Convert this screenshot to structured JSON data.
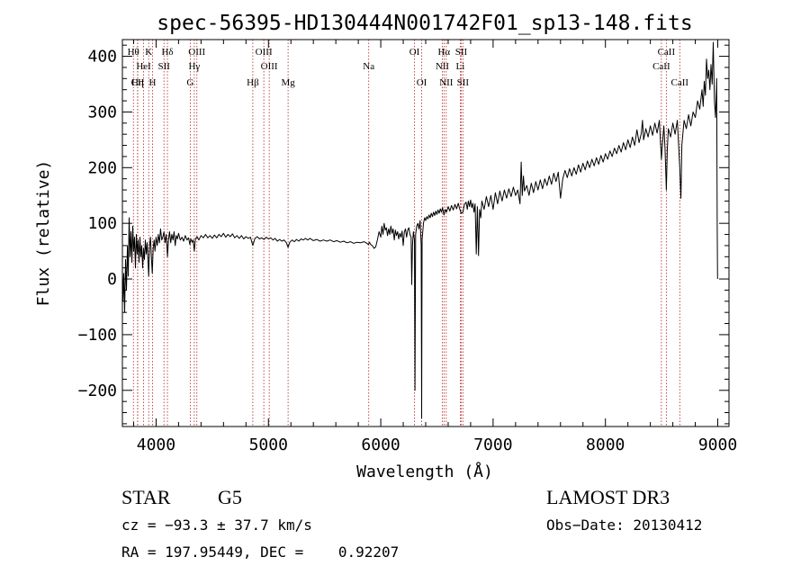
{
  "chart_data": {
    "type": "line",
    "title": "spec-56395-HD130444N001742F01_sp13-148.fits",
    "xlabel": "Wavelength (Å)",
    "ylabel": "Flux (relative)",
    "xlim": [
      3700,
      9100
    ],
    "ylim": [
      -265,
      430
    ],
    "x_ticks": [
      "4000",
      "5000",
      "6000",
      "7000",
      "8000",
      "9000"
    ],
    "x_tick_values": [
      4000,
      5000,
      6000,
      7000,
      8000,
      9000
    ],
    "y_ticks": [
      "−200",
      "−100",
      "0",
      "100",
      "200",
      "300",
      "400"
    ],
    "y_tick_values": [
      -200,
      -100,
      0,
      100,
      200,
      300,
      400
    ],
    "grid": false,
    "series_color": "#000000",
    "line_color": "#b22222",
    "spectrum": [
      [
        3700,
        20
      ],
      [
        3705,
        -40
      ],
      [
        3712,
        10
      ],
      [
        3720,
        -60
      ],
      [
        3728,
        35
      ],
      [
        3736,
        -20
      ],
      [
        3745,
        60
      ],
      [
        3752,
        5
      ],
      [
        3760,
        110
      ],
      [
        3768,
        40
      ],
      [
        3776,
        85
      ],
      [
        3784,
        30
      ],
      [
        3792,
        95
      ],
      [
        3800,
        50
      ],
      [
        3808,
        75
      ],
      [
        3816,
        20
      ],
      [
        3824,
        80
      ],
      [
        3832,
        45
      ],
      [
        3840,
        70
      ],
      [
        3848,
        30
      ],
      [
        3856,
        75
      ],
      [
        3864,
        40
      ],
      [
        3872,
        60
      ],
      [
        3880,
        20
      ],
      [
        3888,
        55
      ],
      [
        3896,
        35
      ],
      [
        3904,
        70
      ],
      [
        3912,
        45
      ],
      [
        3920,
        65
      ],
      [
        3928,
        30
      ],
      [
        3934,
        5
      ],
      [
        3942,
        60
      ],
      [
        3950,
        75
      ],
      [
        3958,
        40
      ],
      [
        3966,
        10
      ],
      [
        3974,
        55
      ],
      [
        3982,
        70
      ],
      [
        3990,
        50
      ],
      [
        4000,
        75
      ],
      [
        4010,
        60
      ],
      [
        4020,
        80
      ],
      [
        4030,
        65
      ],
      [
        4040,
        90
      ],
      [
        4050,
        70
      ],
      [
        4060,
        75
      ],
      [
        4070,
        85
      ],
      [
        4080,
        65
      ],
      [
        4090,
        80
      ],
      [
        4101,
        40
      ],
      [
        4110,
        70
      ],
      [
        4120,
        85
      ],
      [
        4130,
        65
      ],
      [
        4140,
        80
      ],
      [
        4150,
        70
      ],
      [
        4160,
        85
      ],
      [
        4170,
        60
      ],
      [
        4180,
        78
      ],
      [
        4190,
        72
      ],
      [
        4200,
        82
      ],
      [
        4215,
        70
      ],
      [
        4230,
        75
      ],
      [
        4245,
        68
      ],
      [
        4260,
        78
      ],
      [
        4275,
        70
      ],
      [
        4290,
        74
      ],
      [
        4300,
        62
      ],
      [
        4310,
        72
      ],
      [
        4320,
        66
      ],
      [
        4330,
        70
      ],
      [
        4340,
        50
      ],
      [
        4350,
        72
      ],
      [
        4365,
        76
      ],
      [
        4380,
        70
      ],
      [
        4400,
        78
      ],
      [
        4420,
        74
      ],
      [
        4440,
        80
      ],
      [
        4460,
        74
      ],
      [
        4480,
        78
      ],
      [
        4500,
        73
      ],
      [
        4520,
        79
      ],
      [
        4540,
        74
      ],
      [
        4560,
        80
      ],
      [
        4580,
        76
      ],
      [
        4600,
        82
      ],
      [
        4620,
        75
      ],
      [
        4640,
        80
      ],
      [
        4660,
        76
      ],
      [
        4680,
        81
      ],
      [
        4700,
        74
      ],
      [
        4720,
        78
      ],
      [
        4740,
        73
      ],
      [
        4760,
        78
      ],
      [
        4780,
        72
      ],
      [
        4800,
        76
      ],
      [
        4820,
        73
      ],
      [
        4840,
        75
      ],
      [
        4861,
        60
      ],
      [
        4880,
        73
      ],
      [
        4900,
        76
      ],
      [
        4920,
        72
      ],
      [
        4940,
        74
      ],
      [
        4960,
        71
      ],
      [
        4980,
        75
      ],
      [
        5000,
        72
      ],
      [
        5020,
        74
      ],
      [
        5040,
        70
      ],
      [
        5060,
        73
      ],
      [
        5080,
        68
      ],
      [
        5100,
        71
      ],
      [
        5120,
        68
      ],
      [
        5140,
        70
      ],
      [
        5160,
        65
      ],
      [
        5175,
        57
      ],
      [
        5190,
        66
      ],
      [
        5210,
        70
      ],
      [
        5230,
        67
      ],
      [
        5250,
        71
      ],
      [
        5270,
        68
      ],
      [
        5290,
        72
      ],
      [
        5310,
        70
      ],
      [
        5330,
        73
      ],
      [
        5350,
        70
      ],
      [
        5370,
        73
      ],
      [
        5400,
        69
      ],
      [
        5430,
        71
      ],
      [
        5460,
        68
      ],
      [
        5490,
        70
      ],
      [
        5520,
        68
      ],
      [
        5550,
        70
      ],
      [
        5580,
        67
      ],
      [
        5610,
        69
      ],
      [
        5640,
        66
      ],
      [
        5670,
        68
      ],
      [
        5700,
        65
      ],
      [
        5730,
        67
      ],
      [
        5760,
        64
      ],
      [
        5790,
        66
      ],
      [
        5820,
        65
      ],
      [
        5850,
        67
      ],
      [
        5870,
        65
      ],
      [
        5890,
        62
      ],
      [
        5900,
        66
      ],
      [
        5910,
        62
      ],
      [
        5925,
        60
      ],
      [
        5940,
        55
      ],
      [
        5955,
        58
      ],
      [
        5970,
        70
      ],
      [
        5985,
        85
      ],
      [
        6000,
        75
      ],
      [
        6010,
        95
      ],
      [
        6020,
        80
      ],
      [
        6030,
        100
      ],
      [
        6040,
        88
      ],
      [
        6050,
        92
      ],
      [
        6060,
        78
      ],
      [
        6070,
        90
      ],
      [
        6080,
        80
      ],
      [
        6090,
        95
      ],
      [
        6100,
        82
      ],
      [
        6110,
        90
      ],
      [
        6120,
        70
      ],
      [
        6130,
        88
      ],
      [
        6140,
        78
      ],
      [
        6150,
        85
      ],
      [
        6160,
        72
      ],
      [
        6170,
        82
      ],
      [
        6180,
        75
      ],
      [
        6190,
        86
      ],
      [
        6200,
        60
      ],
      [
        6210,
        85
      ],
      [
        6220,
        90
      ],
      [
        6230,
        75
      ],
      [
        6240,
        88
      ],
      [
        6250,
        92
      ],
      [
        6260,
        80
      ],
      [
        6270,
        75
      ],
      [
        6276,
        -10
      ],
      [
        6282,
        60
      ],
      [
        6290,
        85
      ],
      [
        6300,
        70
      ],
      [
        6305,
        -200
      ],
      [
        6310,
        80
      ],
      [
        6320,
        95
      ],
      [
        6330,
        100
      ],
      [
        6340,
        90
      ],
      [
        6350,
        105
      ],
      [
        6360,
        60
      ],
      [
        6364,
        -250
      ],
      [
        6368,
        70
      ],
      [
        6380,
        100
      ],
      [
        6390,
        110
      ],
      [
        6400,
        105
      ],
      [
        6410,
        112
      ],
      [
        6420,
        108
      ],
      [
        6430,
        115
      ],
      [
        6440,
        110
      ],
      [
        6450,
        118
      ],
      [
        6460,
        112
      ],
      [
        6470,
        120
      ],
      [
        6480,
        114
      ],
      [
        6490,
        122
      ],
      [
        6500,
        116
      ],
      [
        6510,
        124
      ],
      [
        6520,
        118
      ],
      [
        6530,
        126
      ],
      [
        6540,
        120
      ],
      [
        6550,
        128
      ],
      [
        6563,
        115
      ],
      [
        6575,
        125
      ],
      [
        6585,
        120
      ],
      [
        6600,
        130
      ],
      [
        6615,
        122
      ],
      [
        6630,
        132
      ],
      [
        6645,
        124
      ],
      [
        6660,
        134
      ],
      [
        6675,
        126
      ],
      [
        6690,
        136
      ],
      [
        6700,
        128
      ],
      [
        6716,
        118
      ],
      [
        6731,
        120
      ],
      [
        6745,
        134
      ],
      [
        6760,
        138
      ],
      [
        6770,
        125
      ],
      [
        6780,
        140
      ],
      [
        6790,
        130
      ],
      [
        6800,
        142
      ],
      [
        6810,
        128
      ],
      [
        6820,
        136
      ],
      [
        6830,
        120
      ],
      [
        6840,
        135
      ],
      [
        6850,
        45
      ],
      [
        6860,
        130
      ],
      [
        6870,
        42
      ],
      [
        6880,
        125
      ],
      [
        6890,
        110
      ],
      [
        6900,
        140
      ],
      [
        6920,
        125
      ],
      [
        6940,
        148
      ],
      [
        6960,
        130
      ],
      [
        6980,
        150
      ],
      [
        7000,
        125
      ],
      [
        7020,
        155
      ],
      [
        7040,
        135
      ],
      [
        7060,
        158
      ],
      [
        7080,
        140
      ],
      [
        7100,
        160
      ],
      [
        7120,
        145
      ],
      [
        7140,
        162
      ],
      [
        7160,
        148
      ],
      [
        7180,
        165
      ],
      [
        7200,
        150
      ],
      [
        7220,
        160
      ],
      [
        7240,
        135
      ],
      [
        7250,
        210
      ],
      [
        7260,
        150
      ],
      [
        7270,
        185
      ],
      [
        7280,
        158
      ],
      [
        7300,
        168
      ],
      [
        7320,
        150
      ],
      [
        7340,
        172
      ],
      [
        7360,
        155
      ],
      [
        7380,
        175
      ],
      [
        7400,
        160
      ],
      [
        7420,
        178
      ],
      [
        7440,
        162
      ],
      [
        7460,
        180
      ],
      [
        7480,
        168
      ],
      [
        7500,
        185
      ],
      [
        7520,
        170
      ],
      [
        7540,
        190
      ],
      [
        7560,
        175
      ],
      [
        7580,
        192
      ],
      [
        7600,
        145
      ],
      [
        7620,
        180
      ],
      [
        7640,
        195
      ],
      [
        7660,
        182
      ],
      [
        7680,
        198
      ],
      [
        7700,
        185
      ],
      [
        7720,
        200
      ],
      [
        7740,
        188
      ],
      [
        7760,
        205
      ],
      [
        7780,
        192
      ],
      [
        7800,
        208
      ],
      [
        7820,
        196
      ],
      [
        7840,
        212
      ],
      [
        7860,
        200
      ],
      [
        7880,
        215
      ],
      [
        7900,
        203
      ],
      [
        7920,
        218
      ],
      [
        7940,
        206
      ],
      [
        7960,
        222
      ],
      [
        7980,
        210
      ],
      [
        8000,
        225
      ],
      [
        8020,
        215
      ],
      [
        8040,
        230
      ],
      [
        8060,
        220
      ],
      [
        8080,
        235
      ],
      [
        8100,
        225
      ],
      [
        8120,
        240
      ],
      [
        8140,
        228
      ],
      [
        8160,
        245
      ],
      [
        8180,
        232
      ],
      [
        8200,
        250
      ],
      [
        8220,
        236
      ],
      [
        8240,
        255
      ],
      [
        8260,
        240
      ],
      [
        8280,
        268
      ],
      [
        8300,
        245
      ],
      [
        8320,
        262
      ],
      [
        8330,
        285
      ],
      [
        8340,
        250
      ],
      [
        8360,
        270
      ],
      [
        8380,
        255
      ],
      [
        8400,
        275
      ],
      [
        8420,
        258
      ],
      [
        8440,
        280
      ],
      [
        8460,
        262
      ],
      [
        8480,
        285
      ],
      [
        8498,
        215
      ],
      [
        8510,
        250
      ],
      [
        8520,
        275
      ],
      [
        8530,
        235
      ],
      [
        8542,
        160
      ],
      [
        8550,
        230
      ],
      [
        8560,
        270
      ],
      [
        8580,
        255
      ],
      [
        8600,
        280
      ],
      [
        8620,
        260
      ],
      [
        8640,
        285
      ],
      [
        8662,
        200
      ],
      [
        8672,
        145
      ],
      [
        8680,
        240
      ],
      [
        8700,
        285
      ],
      [
        8720,
        270
      ],
      [
        8740,
        295
      ],
      [
        8760,
        275
      ],
      [
        8780,
        300
      ],
      [
        8800,
        290
      ],
      [
        8820,
        320
      ],
      [
        8840,
        305
      ],
      [
        8860,
        340
      ],
      [
        8870,
        310
      ],
      [
        8880,
        355
      ],
      [
        8890,
        330
      ],
      [
        8900,
        395
      ],
      [
        8910,
        360
      ],
      [
        8920,
        375
      ],
      [
        8930,
        340
      ],
      [
        8940,
        385
      ],
      [
        8950,
        350
      ],
      [
        8960,
        425
      ],
      [
        8970,
        320
      ],
      [
        8980,
        290
      ],
      [
        8990,
        360
      ],
      [
        8995,
        95
      ],
      [
        8998,
        0
      ]
    ],
    "lines": [
      {
        "label": "Hθ",
        "wl": 3798,
        "row": 1
      },
      {
        "label": "CII",
        "wl": 3836,
        "row": 3
      },
      {
        "label": "K",
        "wl": 3934,
        "row": 1
      },
      {
        "label": "HeI",
        "wl": 3889,
        "row": 2
      },
      {
        "label": "Hη",
        "wl": 3835,
        "row": 3
      },
      {
        "label": "Hδ",
        "wl": 4101,
        "row": 1
      },
      {
        "label": "SII",
        "wl": 4070,
        "row": 2
      },
      {
        "label": "H",
        "wl": 3968,
        "row": 3
      },
      {
        "label": "OIII",
        "wl": 4363,
        "row": 1
      },
      {
        "label": "Hγ",
        "wl": 4340,
        "row": 2
      },
      {
        "label": "G",
        "wl": 4304,
        "row": 3
      },
      {
        "label": "Hβ",
        "wl": 4861,
        "row": 3
      },
      {
        "label": "OIII",
        "wl": 4959,
        "row": 1
      },
      {
        "label": "OIII",
        "wl": 5007,
        "row": 2
      },
      {
        "label": "Mg",
        "wl": 5175,
        "row": 3
      },
      {
        "label": "Na",
        "wl": 5893,
        "row": 2
      },
      {
        "label": "OI",
        "wl": 6300,
        "row": 1
      },
      {
        "label": "OI",
        "wl": 6364,
        "row": 3
      },
      {
        "label": "Hα",
        "wl": 6563,
        "row": 1
      },
      {
        "label": "NII",
        "wl": 6548,
        "row": 2
      },
      {
        "label": "NII",
        "wl": 6583,
        "row": 3
      },
      {
        "label": "SII",
        "wl": 6716,
        "row": 1
      },
      {
        "label": "Li",
        "wl": 6708,
        "row": 2
      },
      {
        "label": "SII",
        "wl": 6731,
        "row": 3
      },
      {
        "label": "CaII",
        "wl": 8542,
        "row": 1
      },
      {
        "label": "CaII",
        "wl": 8498,
        "row": 2
      },
      {
        "label": "CaII",
        "wl": 8662,
        "row": 3
      }
    ]
  },
  "info": {
    "object_class": "STAR",
    "subclass": "G5",
    "survey": "LAMOST DR3",
    "cz": "cz = −93.3 ± 37.7 km/s",
    "obs_date": "Obs−Date: 20130412",
    "coords": "RA = 197.95449, DEC =    0.92207"
  }
}
